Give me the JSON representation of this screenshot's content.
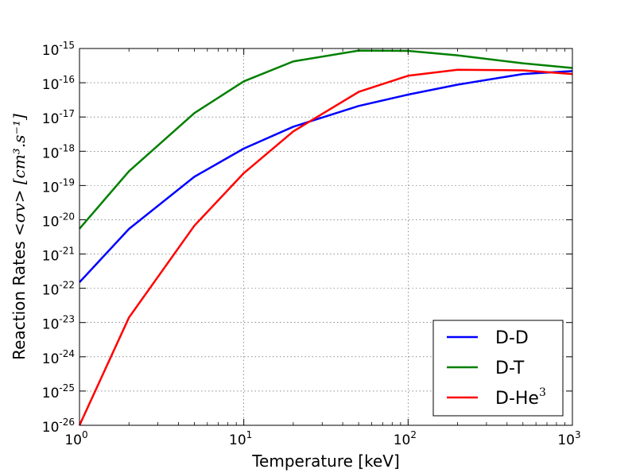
{
  "chart_data": {
    "type": "line",
    "x_scale": "log",
    "y_scale": "log",
    "xlim": [
      1,
      1000
    ],
    "ylim": [
      1e-26,
      1e-15
    ],
    "xlabel": "Temperature [keV]",
    "ylabel_text": "Reaction Rates ",
    "ylabel_math": "<σv> [cm³.s⁻¹]",
    "x_ticks": [
      {
        "base": "10",
        "exp": "0",
        "value": 1
      },
      {
        "base": "10",
        "exp": "1",
        "value": 10
      },
      {
        "base": "10",
        "exp": "2",
        "value": 100
      },
      {
        "base": "10",
        "exp": "3",
        "value": 1000
      }
    ],
    "y_ticks": [
      {
        "base": "10",
        "exp": "-26",
        "value": -26
      },
      {
        "base": "10",
        "exp": "-25",
        "value": -25
      },
      {
        "base": "10",
        "exp": "-24",
        "value": -24
      },
      {
        "base": "10",
        "exp": "-23",
        "value": -23
      },
      {
        "base": "10",
        "exp": "-22",
        "value": -22
      },
      {
        "base": "10",
        "exp": "-21",
        "value": -21
      },
      {
        "base": "10",
        "exp": "-20",
        "value": -20
      },
      {
        "base": "10",
        "exp": "-19",
        "value": -19
      },
      {
        "base": "10",
        "exp": "-18",
        "value": -18
      },
      {
        "base": "10",
        "exp": "-17",
        "value": -17
      },
      {
        "base": "10",
        "exp": "-16",
        "value": -16
      },
      {
        "base": "10",
        "exp": "-15",
        "value": -15
      }
    ],
    "grid": true,
    "legend_position": "lower-right",
    "series": [
      {
        "name": "D-D",
        "label_base": "D-D",
        "label_sup": "",
        "color": "#0000ff",
        "x": [
          1,
          2,
          5,
          10,
          20,
          50,
          100,
          200,
          500,
          1000
        ],
        "y": [
          1.5e-22,
          5.4e-21,
          1.8e-19,
          1.2e-18,
          5.2e-18,
          2.1e-17,
          4.5e-17,
          8.8e-17,
          1.8e-16,
          2.2e-16
        ]
      },
      {
        "name": "D-T",
        "label_base": "D-T",
        "label_sup": "",
        "color": "#008000",
        "x": [
          1,
          2,
          5,
          10,
          20,
          50,
          100,
          200,
          500,
          1000
        ],
        "y": [
          5.5e-21,
          2.6e-19,
          1.3e-17,
          1.1e-16,
          4.2e-16,
          8.7e-16,
          8.5e-16,
          6.3e-16,
          3.7e-16,
          2.7e-16
        ]
      },
      {
        "name": "D-He3",
        "label_base": "D-He",
        "label_sup": "3",
        "color": "#ff0000",
        "x": [
          1,
          2,
          5,
          10,
          20,
          50,
          100,
          200,
          500,
          1000
        ],
        "y": [
          1e-26,
          1.4e-23,
          6.7e-21,
          2.3e-19,
          3.8e-18,
          5.4e-17,
          1.6e-16,
          2.4e-16,
          2.3e-16,
          1.8e-16
        ]
      }
    ]
  }
}
